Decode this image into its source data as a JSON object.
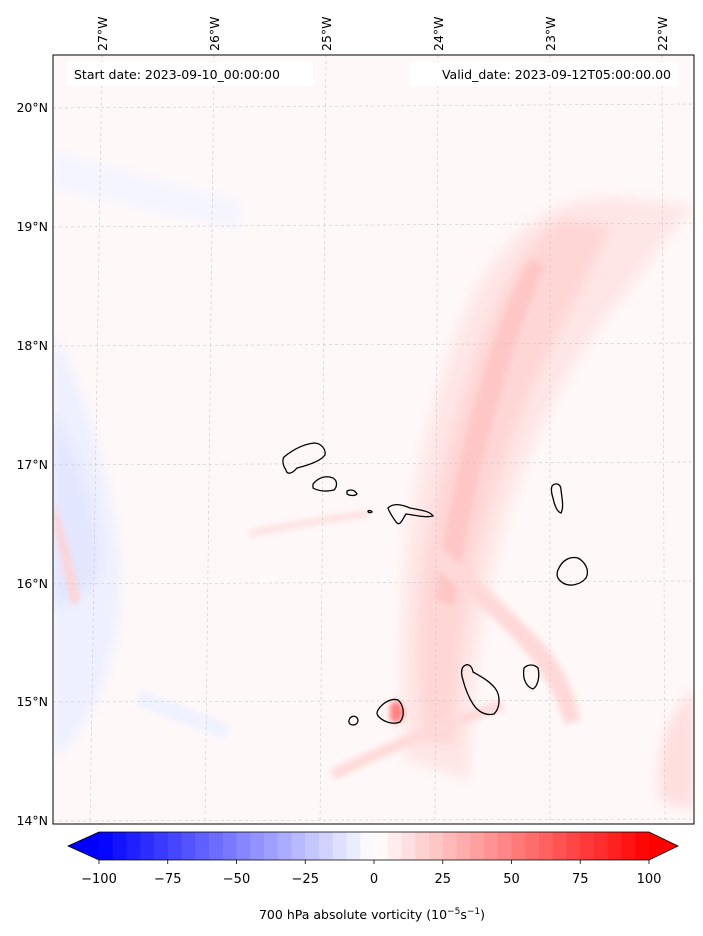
{
  "map": {
    "lon_ticks": [
      "27°W",
      "26°W",
      "25°W",
      "24°W",
      "23°W",
      "22°W"
    ],
    "lat_ticks": [
      "20°N",
      "19°N",
      "18°N",
      "17°N",
      "16°N",
      "15°N",
      "14°N"
    ],
    "start_label": "Start date: 2023-09-10_00:00:00",
    "valid_label": "Valid_date: 2023-09-12T05:00:00.00",
    "islands": [
      "Santo Antão",
      "São Vicente",
      "Santa Luzia",
      "Branco",
      "São Nicolau",
      "Sal",
      "Boa Vista",
      "Maio",
      "Santiago",
      "Fogo",
      "Brava"
    ]
  },
  "colorbar": {
    "ticks": [
      "−100",
      "−75",
      "−50",
      "−25",
      "0",
      "25",
      "50",
      "75",
      "100"
    ],
    "range": [
      -100,
      100
    ],
    "label_main": "700 hPa absolute vorticity (10",
    "label_sup1": "−5",
    "label_mid": "s",
    "label_sup2": "−1",
    "label_end": ")",
    "colormap": "bwr",
    "low_color": "#0000ff",
    "mid_color": "#ffffff",
    "high_color": "#ff0000"
  }
}
